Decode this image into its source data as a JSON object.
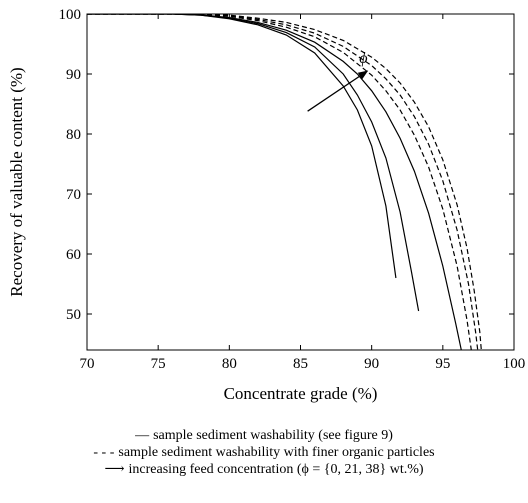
{
  "chart_data": {
    "type": "line",
    "xlabel": "Concentrate grade (%)",
    "ylabel": "Recovery of valuable content (%)",
    "xlim": [
      70,
      100
    ],
    "ylim": [
      44,
      100
    ],
    "xticks": [
      "70",
      "75",
      "80",
      "85",
      "90",
      "95",
      "100"
    ],
    "yticks": [
      "50",
      "60",
      "70",
      "80",
      "90",
      "100"
    ],
    "grid": false,
    "annotation": {
      "label": "ϕ",
      "from": [
        85.5,
        83.8
      ],
      "to": [
        89.7,
        90.5
      ]
    },
    "series": [
      {
        "style": "solid",
        "points": [
          [
            70,
            100
          ],
          [
            76,
            100
          ],
          [
            78,
            99.8
          ],
          [
            80,
            99.2
          ],
          [
            82,
            98.2
          ],
          [
            84,
            96.5
          ],
          [
            86,
            93.5
          ],
          [
            88,
            88
          ],
          [
            89,
            84
          ],
          [
            90,
            78
          ],
          [
            91,
            68
          ],
          [
            91.7,
            56
          ]
        ]
      },
      {
        "style": "solid",
        "points": [
          [
            70,
            100
          ],
          [
            76,
            100
          ],
          [
            78,
            99.8
          ],
          [
            80,
            99.3
          ],
          [
            82,
            98.4
          ],
          [
            84,
            96.9
          ],
          [
            86,
            94.5
          ],
          [
            88,
            90
          ],
          [
            89,
            86.5
          ],
          [
            90,
            82
          ],
          [
            91,
            76
          ],
          [
            92,
            67
          ],
          [
            92.8,
            57
          ],
          [
            93.3,
            50.5
          ]
        ]
      },
      {
        "style": "solid",
        "points": [
          [
            70,
            100
          ],
          [
            76,
            100
          ],
          [
            78,
            99.85
          ],
          [
            80,
            99.4
          ],
          [
            82,
            98.6
          ],
          [
            84,
            97.3
          ],
          [
            86,
            95.3
          ],
          [
            88,
            92.1
          ],
          [
            89,
            90
          ],
          [
            90,
            87.2
          ],
          [
            91,
            83.7
          ],
          [
            92,
            79.3
          ],
          [
            93,
            73.8
          ],
          [
            94,
            66.8
          ],
          [
            95,
            58
          ],
          [
            95.9,
            48.5
          ],
          [
            96.3,
            44
          ]
        ]
      },
      {
        "style": "dashed",
        "points": [
          [
            70,
            100
          ],
          [
            76,
            100
          ],
          [
            78,
            99.9
          ],
          [
            80,
            99.6
          ],
          [
            82,
            98.9
          ],
          [
            84,
            97.8
          ],
          [
            86,
            96.2
          ],
          [
            88,
            93.6
          ],
          [
            90,
            89.8
          ],
          [
            91,
            87.2
          ],
          [
            92,
            84
          ],
          [
            93,
            79.8
          ],
          [
            94,
            74.5
          ],
          [
            95,
            67.5
          ],
          [
            96,
            58
          ],
          [
            96.7,
            49
          ],
          [
            97,
            44
          ]
        ]
      },
      {
        "style": "dashed",
        "points": [
          [
            70,
            100
          ],
          [
            76,
            100
          ],
          [
            78,
            99.9
          ],
          [
            80,
            99.7
          ],
          [
            82,
            99.1
          ],
          [
            84,
            98.2
          ],
          [
            86,
            96.8
          ],
          [
            88,
            94.6
          ],
          [
            90,
            91.4
          ],
          [
            91,
            89.2
          ],
          [
            92,
            86.5
          ],
          [
            93,
            82.9
          ],
          [
            94,
            78.3
          ],
          [
            95,
            72.2
          ],
          [
            96,
            64
          ],
          [
            96.8,
            55
          ],
          [
            97.3,
            47
          ],
          [
            97.45,
            44
          ]
        ]
      },
      {
        "style": "dashed",
        "points": [
          [
            70,
            100
          ],
          [
            76,
            100
          ],
          [
            78,
            99.95
          ],
          [
            80,
            99.8
          ],
          [
            82,
            99.3
          ],
          [
            84,
            98.6
          ],
          [
            86,
            97.4
          ],
          [
            88,
            95.6
          ],
          [
            90,
            92.8
          ],
          [
            91,
            90.9
          ],
          [
            92,
            88.5
          ],
          [
            93,
            85.3
          ],
          [
            94,
            81.2
          ],
          [
            95,
            75.7
          ],
          [
            96,
            68.2
          ],
          [
            96.7,
            61
          ],
          [
            97.2,
            54
          ],
          [
            97.6,
            47
          ],
          [
            97.7,
            44
          ]
        ]
      }
    ]
  },
  "legend": {
    "solid_symbol": "—",
    "solid_text": "sample sediment washability (see figure 9)",
    "dashed_symbol": "- - -",
    "dashed_text": "sample sediment washability with finer organic particles",
    "arrow_symbol": "⟶",
    "arrow_text": "increasing feed concentration (ϕ = {0, 21, 38} wt.%)"
  }
}
